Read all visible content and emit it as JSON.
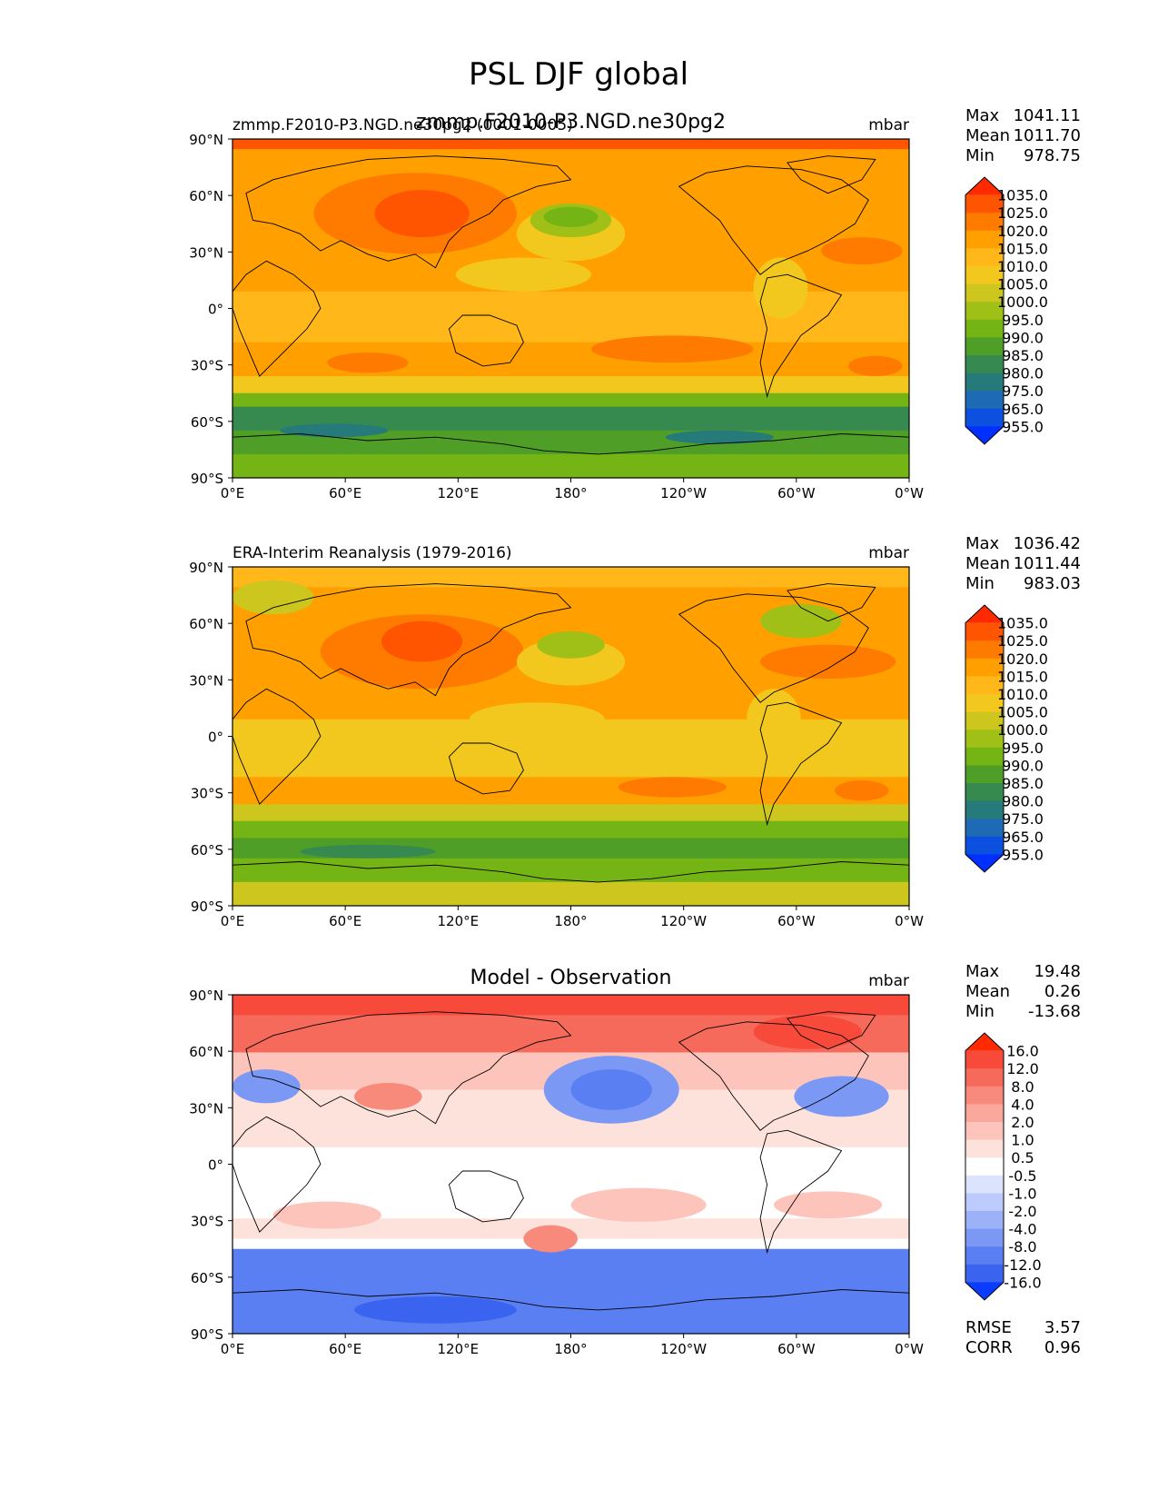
{
  "figure": {
    "title": "PSL DJF global"
  },
  "axis_labels": {
    "lat": [
      "90°N",
      "60°N",
      "30°N",
      "0°",
      "30°S",
      "60°S",
      "90°S"
    ],
    "lon": [
      "0°E",
      "60°E",
      "120°E",
      "180°",
      "120°W",
      "60°W",
      "0°W"
    ]
  },
  "panels": [
    {
      "id": "test",
      "title_left": "zmmp.F2010-P3.NGD.ne30pg2 (0001-0005)",
      "title_center": "zmmp.F2010-P3.NGD.ne30pg2",
      "units": "mbar",
      "stats": [
        {
          "label": "Max",
          "value": "1041.11"
        },
        {
          "label": "Mean",
          "value": "1011.70"
        },
        {
          "label": "Min",
          "value": "978.75"
        }
      ],
      "colorbar": {
        "levels": [
          "1035.0",
          "1025.0",
          "1020.0",
          "1015.0",
          "1010.0",
          "1005.0",
          "1000.0",
          "995.0",
          "990.0",
          "985.0",
          "980.0",
          "975.0",
          "965.0",
          "955.0"
        ],
        "colors": [
          "#ff2a00",
          "#ff5500",
          "#ff7b00",
          "#ffa000",
          "#ffb71a",
          "#f2c81e",
          "#ccc61e",
          "#a0c018",
          "#74b414",
          "#4e9e28",
          "#368a50",
          "#267a7a",
          "#1e6ab4",
          "#0c50e0",
          "#0030ff"
        ]
      },
      "field": {
        "description": "sea level pressure",
        "dominant_colors": [
          "#ffa000",
          "#ff7b00",
          "#f2c81e",
          "#4e9e28",
          "#74b414"
        ]
      }
    },
    {
      "id": "reference",
      "title_left": "ERA-Interim Reanalysis (1979-2016)",
      "title_center": "",
      "units": "mbar",
      "stats": [
        {
          "label": "Max",
          "value": "1036.42"
        },
        {
          "label": "Mean",
          "value": "1011.44"
        },
        {
          "label": "Min",
          "value": "983.03"
        }
      ],
      "colorbar": {
        "levels": [
          "1035.0",
          "1025.0",
          "1020.0",
          "1015.0",
          "1010.0",
          "1005.0",
          "1000.0",
          "995.0",
          "990.0",
          "985.0",
          "980.0",
          "975.0",
          "965.0",
          "955.0"
        ],
        "colors": [
          "#ff2a00",
          "#ff5500",
          "#ff7b00",
          "#ffa000",
          "#ffb71a",
          "#f2c81e",
          "#ccc61e",
          "#a0c018",
          "#74b414",
          "#4e9e28",
          "#368a50",
          "#267a7a",
          "#1e6ab4",
          "#0c50e0",
          "#0030ff"
        ]
      },
      "field": {
        "description": "sea level pressure",
        "dominant_colors": [
          "#ffa000",
          "#ff7b00",
          "#f2c81e",
          "#74b414"
        ]
      }
    },
    {
      "id": "diff",
      "title_left": "",
      "title_center": "Model - Observation",
      "units": "mbar",
      "stats": [
        {
          "label": "Max",
          "value": "19.48"
        },
        {
          "label": "Mean",
          "value": "0.26"
        },
        {
          "label": "Min",
          "value": "-13.68"
        }
      ],
      "colorbar": {
        "levels": [
          "16.0",
          "12.0",
          "8.0",
          "4.0",
          "2.0",
          "1.0",
          "0.5",
          "-0.5",
          "-1.0",
          "-2.0",
          "-4.0",
          "-8.0",
          "-12.0",
          "-16.0"
        ],
        "colors": [
          "#ff2a00",
          "#f74a3a",
          "#f56a5a",
          "#f88a7c",
          "#fba89c",
          "#fdc4bb",
          "#fde2dc",
          "#ffffff",
          "#dce4fd",
          "#bccbfb",
          "#9cb2f8",
          "#7b98f5",
          "#5a7ff3",
          "#3a64f0",
          "#0a3cff"
        ]
      },
      "extra_stats": [
        {
          "label": "RMSE",
          "value": "3.57"
        },
        {
          "label": "CORR",
          "value": "0.96"
        }
      ],
      "field": {
        "description": "sea level pressure difference",
        "dominant_colors": [
          "#ffffff",
          "#fdc4bb",
          "#f56a5a",
          "#7b98f5",
          "#5a7ff3"
        ]
      }
    }
  ],
  "chart_data": [
    {
      "type": "heatmap",
      "title": "zmmp.F2010-P3.NGD.ne30pg2",
      "units": "mbar",
      "xlim": [
        0,
        360
      ],
      "ylim": [
        -90,
        90
      ],
      "xticks": [
        0,
        60,
        120,
        180,
        240,
        300,
        360
      ],
      "yticks": [
        90,
        60,
        30,
        0,
        -30,
        -60,
        -90
      ],
      "contour_levels": [
        955,
        965,
        975,
        980,
        985,
        990,
        995,
        1000,
        1005,
        1010,
        1015,
        1020,
        1025,
        1035
      ],
      "max": 1041.11,
      "mean": 1011.7,
      "min": 978.75
    },
    {
      "type": "heatmap",
      "title": "ERA-Interim Reanalysis (1979-2016)",
      "units": "mbar",
      "xlim": [
        0,
        360
      ],
      "ylim": [
        -90,
        90
      ],
      "xticks": [
        0,
        60,
        120,
        180,
        240,
        300,
        360
      ],
      "yticks": [
        90,
        60,
        30,
        0,
        -30,
        -60,
        -90
      ],
      "contour_levels": [
        955,
        965,
        975,
        980,
        985,
        990,
        995,
        1000,
        1005,
        1010,
        1015,
        1020,
        1025,
        1035
      ],
      "max": 1036.42,
      "mean": 1011.44,
      "min": 983.03
    },
    {
      "type": "heatmap",
      "title": "Model - Observation",
      "units": "mbar",
      "xlim": [
        0,
        360
      ],
      "ylim": [
        -90,
        90
      ],
      "xticks": [
        0,
        60,
        120,
        180,
        240,
        300,
        360
      ],
      "yticks": [
        90,
        60,
        30,
        0,
        -30,
        -60,
        -90
      ],
      "contour_levels": [
        -16,
        -12,
        -8,
        -4,
        -2,
        -1,
        -0.5,
        0.5,
        1,
        2,
        4,
        8,
        12,
        16
      ],
      "max": 19.48,
      "mean": 0.26,
      "min": -13.68,
      "rmse": 3.57,
      "corr": 0.96
    }
  ]
}
